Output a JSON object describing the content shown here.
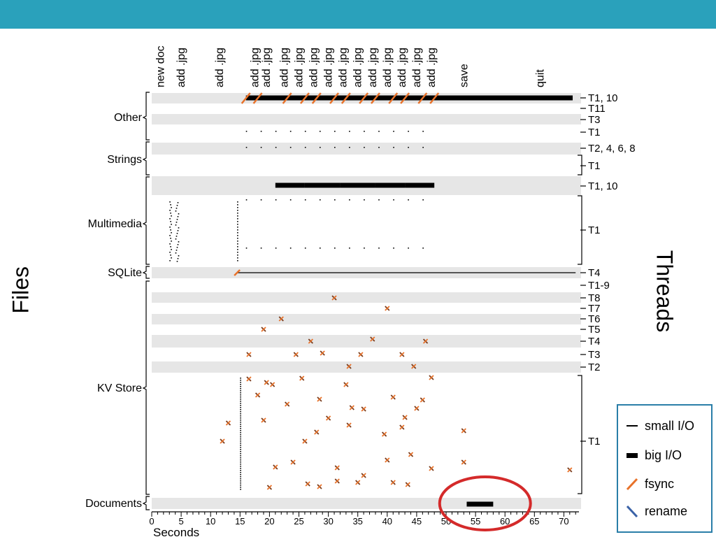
{
  "colors": {
    "accent_bar": "#2aa1bb",
    "fsync": "#e8722a",
    "rename": "#3a62a7",
    "highlight_circle": "#d42a2a",
    "band": "#e6e6e6",
    "legend_border": "#2a7ea8"
  },
  "labels": {
    "files": "Files",
    "threads": "Threads",
    "seconds": "Seconds"
  },
  "legend": {
    "small_io": "small I/O",
    "big_io": "big I/O",
    "fsync": "fsync",
    "rename": "rename"
  },
  "chart_data": {
    "type": "timeline",
    "xlim": [
      0,
      72
    ],
    "xlabel": "Seconds",
    "x_ticks": [
      0,
      5,
      10,
      15,
      20,
      25,
      30,
      35,
      40,
      45,
      50,
      55,
      60,
      65,
      70
    ],
    "events": [
      {
        "label": "new doc",
        "t": 1.5
      },
      {
        "label": "add .jpg",
        "t": 5
      },
      {
        "label": "add .jpg",
        "t": 11.5
      },
      {
        "label": "add .jpg",
        "t": 17.5
      },
      {
        "label": "add .jpg",
        "t": 19.5
      },
      {
        "label": "add .jpg",
        "t": 22.5
      },
      {
        "label": "add .jpg",
        "t": 25
      },
      {
        "label": "add .jpg",
        "t": 27.5
      },
      {
        "label": "add .jpg",
        "t": 30
      },
      {
        "label": "add .jpg",
        "t": 32.5
      },
      {
        "label": "add .jpg",
        "t": 35
      },
      {
        "label": "add .jpg",
        "t": 37.5
      },
      {
        "label": "add .jpg",
        "t": 40
      },
      {
        "label": "add .jpg",
        "t": 42.5
      },
      {
        "label": "add .jpg",
        "t": 45
      },
      {
        "label": "add .jpg",
        "t": 47.5
      },
      {
        "label": "save",
        "t": 53
      },
      {
        "label": "quit",
        "t": 66
      }
    ],
    "file_groups": [
      "Other",
      "Strings",
      "Multimedia",
      "SQLite",
      "KV Store",
      "Documents"
    ],
    "thread_labels": [
      "T1, 10",
      "T11",
      "T3",
      "T1",
      "T2, 4, 6, 8",
      "T1",
      "T1, 10",
      "T1",
      "T4",
      "T1-9",
      "T8",
      "T7",
      "T6",
      "T5",
      "T4",
      "T3",
      "T2",
      "T1"
    ],
    "big_io": [
      {
        "thread": "T1, 10 (Other)",
        "start": 16,
        "end": 71.5
      },
      {
        "thread": "T1, 10 (Multimedia)",
        "start": 21,
        "end": 26
      },
      {
        "thread": "T1, 10 (Multimedia)",
        "start": 26,
        "end": 32
      },
      {
        "thread": "T1, 10 (Multimedia)",
        "start": 32,
        "end": 38
      },
      {
        "thread": "T1, 10 (Multimedia)",
        "start": 38,
        "end": 43
      },
      {
        "thread": "T1, 10 (Multimedia)",
        "start": 43,
        "end": 48
      },
      {
        "thread": "Documents",
        "start": 53.5,
        "end": 58
      }
    ],
    "fsync_in_other": [
      16,
      18,
      23,
      26,
      28,
      31,
      33,
      36,
      38,
      41,
      43,
      46,
      48
    ],
    "sqlite_fsync": 14.5,
    "sqlite_line": [
      14.5,
      72
    ],
    "highlight": {
      "shape": "ellipse",
      "center_t": 56.5,
      "region": "Documents"
    }
  }
}
